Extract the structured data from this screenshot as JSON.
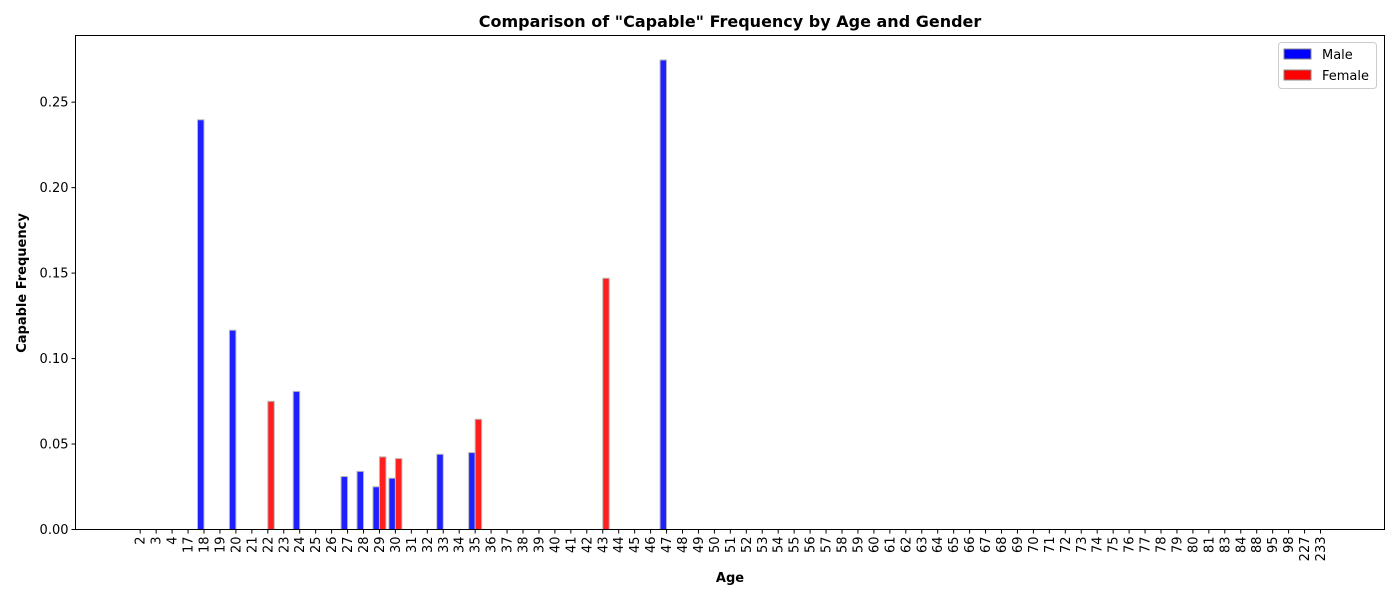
{
  "chart_data": {
    "type": "bar",
    "title": "Comparison of \"Capable\" Frequency by Age and Gender",
    "xlabel": "Age",
    "ylabel": "Capable Frequency",
    "ylim": [
      0,
      0.289
    ],
    "yticks": [
      "0.00",
      "0.05",
      "0.10",
      "0.15",
      "0.20",
      "0.25"
    ],
    "ytick_values": [
      0,
      0.05,
      0.1,
      0.15,
      0.2,
      0.25
    ],
    "grid": false,
    "legend_position": "top-right",
    "categories": [
      "2",
      "3",
      "4",
      "17",
      "18",
      "19",
      "20",
      "21",
      "22",
      "23",
      "24",
      "25",
      "26",
      "27",
      "28",
      "29",
      "30",
      "31",
      "32",
      "33",
      "34",
      "35",
      "36",
      "37",
      "38",
      "39",
      "40",
      "41",
      "42",
      "43",
      "44",
      "45",
      "46",
      "47",
      "48",
      "49",
      "50",
      "51",
      "52",
      "53",
      "54",
      "55",
      "56",
      "57",
      "58",
      "59",
      "60",
      "61",
      "62",
      "63",
      "64",
      "65",
      "66",
      "67",
      "68",
      "69",
      "70",
      "71",
      "72",
      "73",
      "74",
      "75",
      "76",
      "77",
      "78",
      "79",
      "80",
      "81",
      "83",
      "84",
      "88",
      "95",
      "98",
      "227",
      "233"
    ],
    "series": [
      {
        "name": "Male",
        "color": "#0000ff",
        "values": [
          0,
          0,
          0,
          0,
          0.2397,
          0,
          0.1166,
          0,
          0,
          0,
          0.0808,
          0,
          0,
          0.031,
          0.034,
          0.025,
          0.03,
          0,
          0,
          0.044,
          0,
          0.045,
          0,
          0,
          0,
          0,
          0,
          0,
          0,
          0,
          0,
          0,
          0,
          0.2747,
          0,
          0,
          0,
          0,
          0,
          0,
          0,
          0,
          0,
          0,
          0,
          0,
          0,
          0,
          0,
          0,
          0,
          0,
          0,
          0,
          0,
          0,
          0,
          0,
          0,
          0,
          0,
          0,
          0,
          0,
          0,
          0,
          0,
          0,
          0,
          0,
          0,
          0,
          0,
          0,
          0
        ]
      },
      {
        "name": "Female",
        "color": "#ff0000",
        "values": [
          0,
          0,
          0,
          0,
          0,
          0,
          0,
          0,
          0.075,
          0,
          0,
          0,
          0,
          0,
          0,
          0.0425,
          0.0415,
          0,
          0,
          0,
          0,
          0.0645,
          0,
          0,
          0,
          0,
          0,
          0,
          0,
          0.147,
          0,
          0,
          0,
          0,
          0,
          0,
          0,
          0,
          0,
          0,
          0,
          0,
          0,
          0,
          0,
          0,
          0,
          0,
          0,
          0,
          0,
          0,
          0,
          0,
          0,
          0,
          0,
          0,
          0,
          0,
          0,
          0,
          0,
          0,
          0,
          0,
          0,
          0,
          0,
          0,
          0,
          0,
          0,
          0,
          0
        ]
      }
    ]
  }
}
